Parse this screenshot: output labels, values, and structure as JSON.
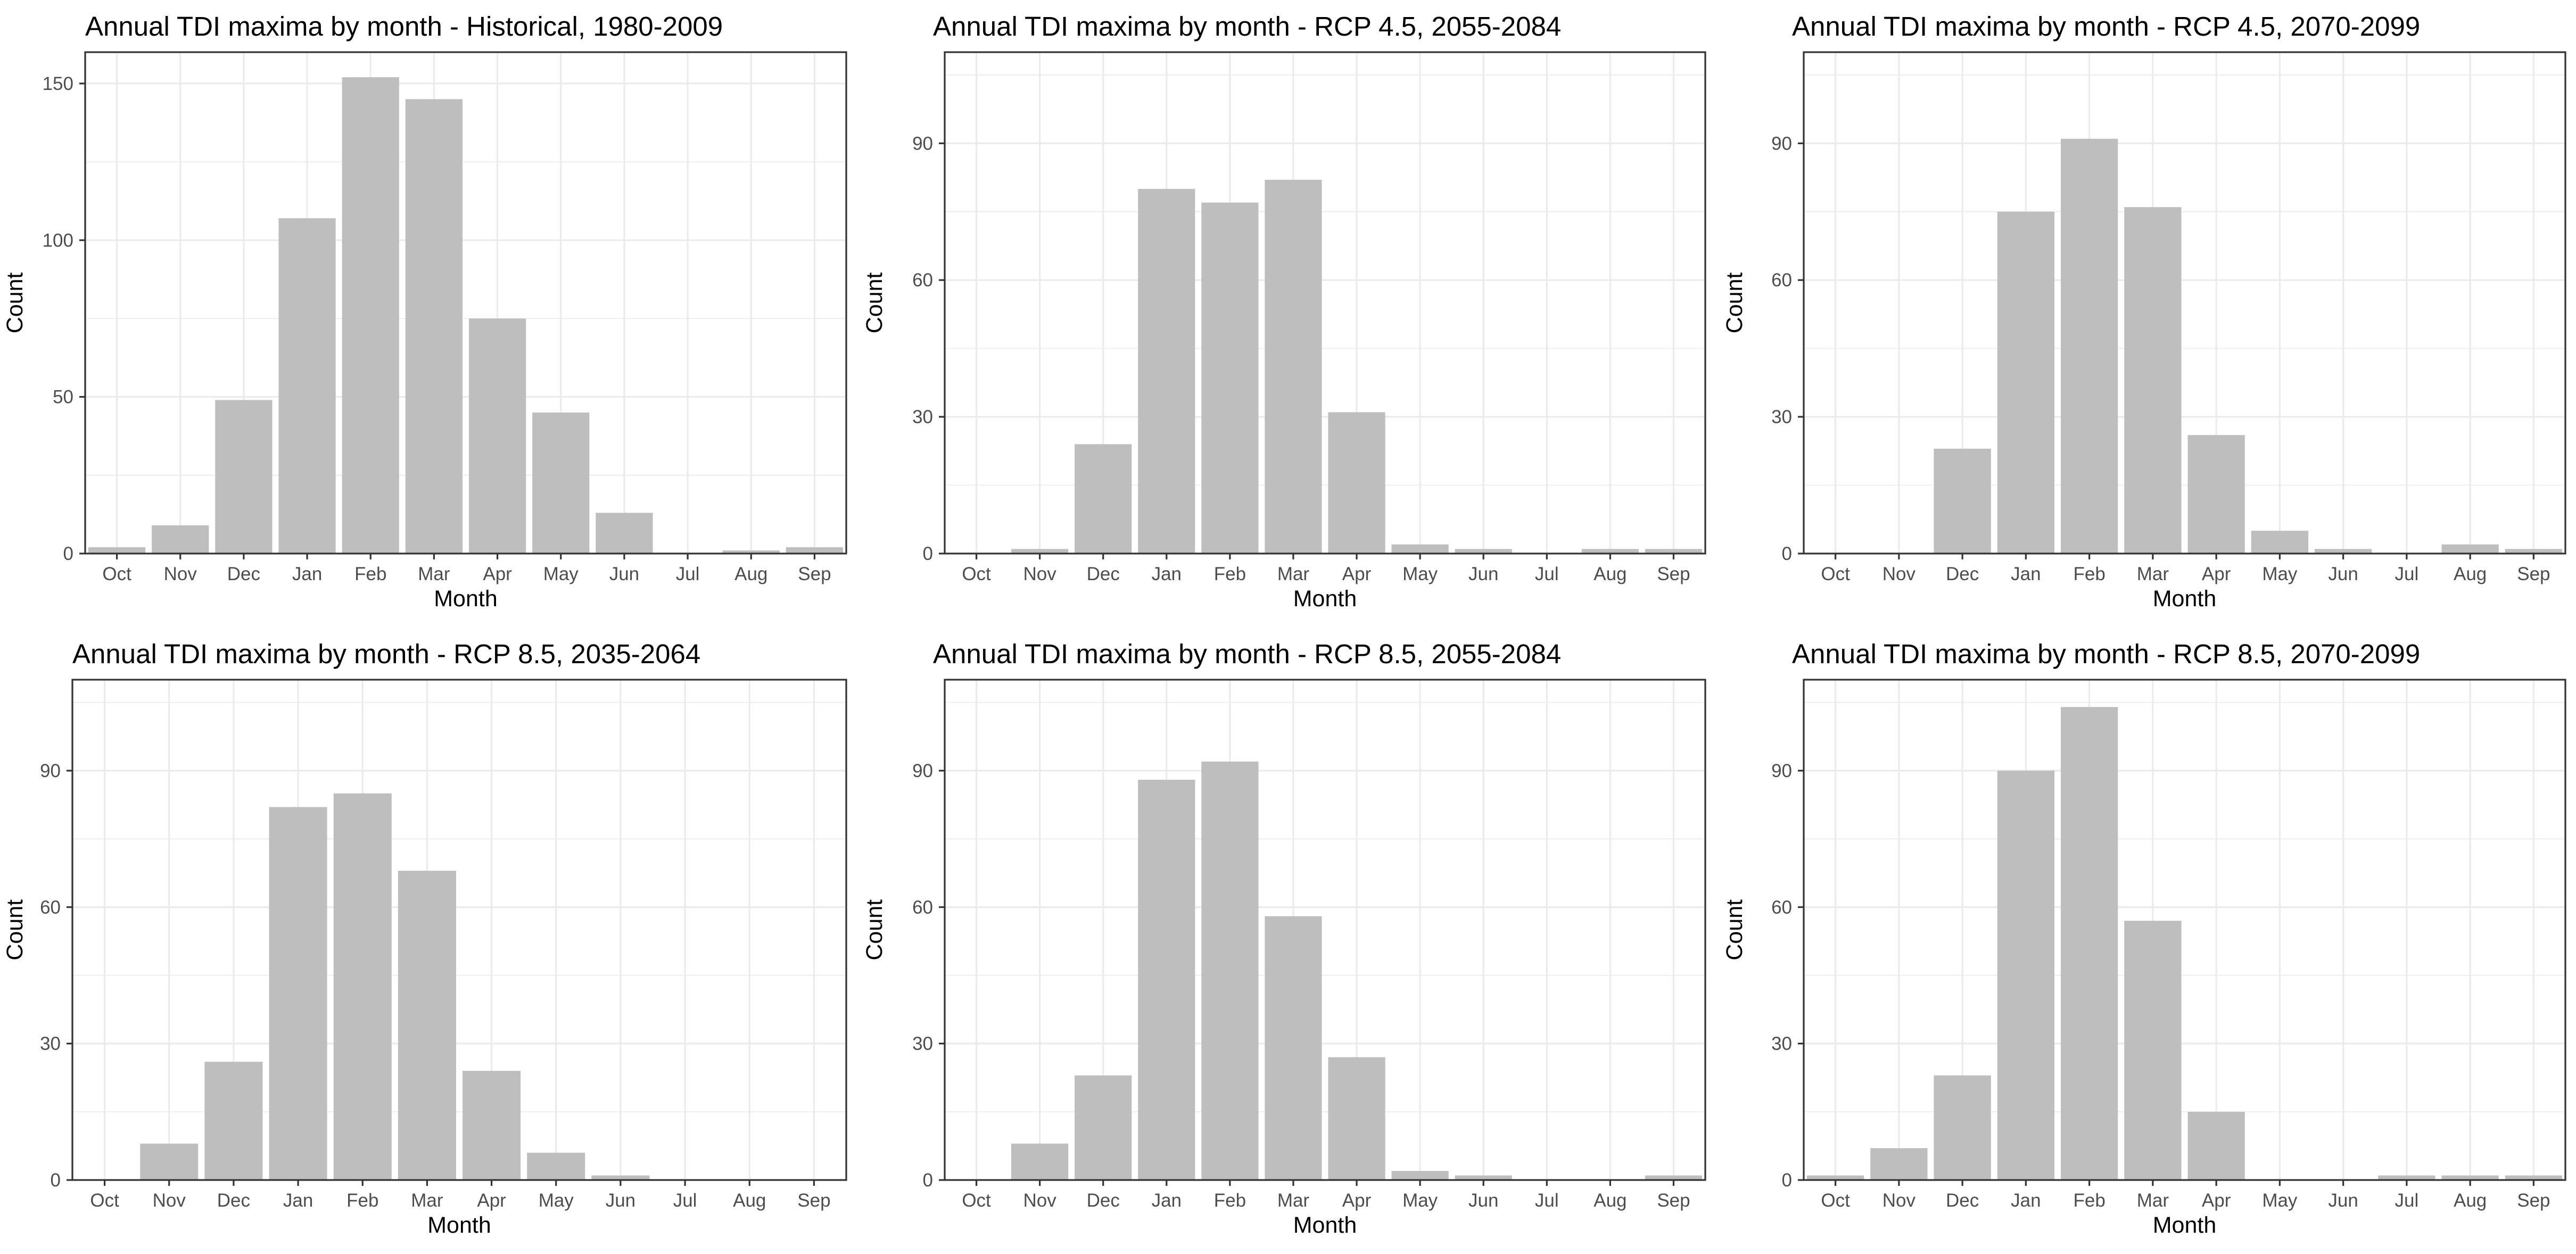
{
  "chart_data": [
    {
      "type": "bar",
      "title": "Annual TDI maxima by month - Historical, 1980-2009",
      "xlabel": "Month",
      "ylabel": "Count",
      "categories": [
        "Oct",
        "Nov",
        "Dec",
        "Jan",
        "Feb",
        "Mar",
        "Apr",
        "May",
        "Jun",
        "Jul",
        "Aug",
        "Sep"
      ],
      "values": [
        2,
        9,
        49,
        107,
        152,
        145,
        75,
        45,
        13,
        0,
        1,
        2
      ],
      "ylim": [
        0,
        160
      ],
      "yticks": [
        0,
        50,
        100,
        150
      ],
      "grid": true,
      "bar_color": "#bebebe"
    },
    {
      "type": "bar",
      "title": "Annual TDI maxima by month - RCP 4.5, 2055-2084",
      "xlabel": "Month",
      "ylabel": "Count",
      "categories": [
        "Oct",
        "Nov",
        "Dec",
        "Jan",
        "Feb",
        "Mar",
        "Apr",
        "May",
        "Jun",
        "Jul",
        "Aug",
        "Sep"
      ],
      "values": [
        0,
        1,
        24,
        80,
        77,
        82,
        31,
        2,
        1,
        0,
        1,
        1
      ],
      "ylim": [
        0,
        110
      ],
      "yticks": [
        0,
        30,
        60,
        90
      ],
      "grid": true,
      "bar_color": "#bebebe"
    },
    {
      "type": "bar",
      "title": "Annual TDI maxima by month - RCP 4.5, 2070-2099",
      "xlabel": "Month",
      "ylabel": "Count",
      "categories": [
        "Oct",
        "Nov",
        "Dec",
        "Jan",
        "Feb",
        "Mar",
        "Apr",
        "May",
        "Jun",
        "Jul",
        "Aug",
        "Sep"
      ],
      "values": [
        0,
        0,
        23,
        75,
        91,
        76,
        26,
        5,
        1,
        0,
        2,
        1
      ],
      "ylim": [
        0,
        110
      ],
      "yticks": [
        0,
        30,
        60,
        90
      ],
      "grid": true,
      "bar_color": "#bebebe"
    },
    {
      "type": "bar",
      "title": "Annual TDI maxima by month - RCP 8.5, 2035-2064",
      "xlabel": "Month",
      "ylabel": "Count",
      "categories": [
        "Oct",
        "Nov",
        "Dec",
        "Jan",
        "Feb",
        "Mar",
        "Apr",
        "May",
        "Jun",
        "Jul",
        "Aug",
        "Sep"
      ],
      "values": [
        0,
        8,
        26,
        82,
        85,
        68,
        24,
        6,
        1,
        0,
        0,
        0
      ],
      "ylim": [
        0,
        110
      ],
      "yticks": [
        0,
        30,
        60,
        90
      ],
      "grid": true,
      "bar_color": "#bebebe"
    },
    {
      "type": "bar",
      "title": "Annual TDI maxima by month - RCP 8.5, 2055-2084",
      "xlabel": "Month",
      "ylabel": "Count",
      "categories": [
        "Oct",
        "Nov",
        "Dec",
        "Jan",
        "Feb",
        "Mar",
        "Apr",
        "May",
        "Jun",
        "Jul",
        "Aug",
        "Sep"
      ],
      "values": [
        0,
        8,
        23,
        88,
        92,
        58,
        27,
        2,
        1,
        0,
        0,
        1
      ],
      "ylim": [
        0,
        110
      ],
      "yticks": [
        0,
        30,
        60,
        90
      ],
      "grid": true,
      "bar_color": "#bebebe"
    },
    {
      "type": "bar",
      "title": "Annual TDI maxima by month - RCP 8.5, 2070-2099",
      "xlabel": "Month",
      "ylabel": "Count",
      "categories": [
        "Oct",
        "Nov",
        "Dec",
        "Jan",
        "Feb",
        "Mar",
        "Apr",
        "May",
        "Jun",
        "Jul",
        "Aug",
        "Sep"
      ],
      "values": [
        1,
        7,
        23,
        90,
        104,
        57,
        15,
        0,
        0,
        1,
        1,
        1
      ],
      "ylim": [
        0,
        110
      ],
      "yticks": [
        0,
        30,
        60,
        90
      ],
      "grid": true,
      "bar_color": "#bebebe"
    }
  ]
}
